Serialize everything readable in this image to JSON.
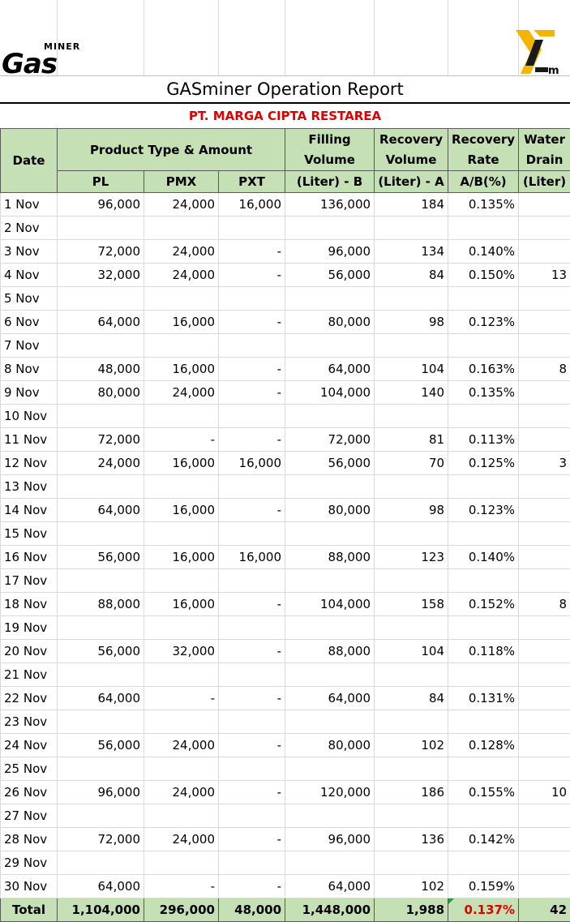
{
  "report": {
    "title": "GASminer Operation Report",
    "company": "PT. MARGA CIPTA RESTAREA",
    "logo_small": "MINER",
    "logo_big": "Gas",
    "logo_right_sub": "m"
  },
  "headers": {
    "date": "Date",
    "product_group": "Product Type & Amount",
    "pl": "PL",
    "pmx": "PMX",
    "pxt": "PXT",
    "filling_1": "Filling",
    "filling_2": "Volume",
    "filling_3": "(Liter) - B",
    "recovery_1": "Recovery",
    "recovery_2": "Volume",
    "recovery_3": "(Liter) - A",
    "rate_1": "Recovery",
    "rate_2": "Rate",
    "rate_3": "A/B(%)",
    "drain_1": "Water",
    "drain_2": "Drain",
    "drain_3": "(Liter)"
  },
  "rows": [
    [
      "1 Nov",
      "96,000",
      "24,000",
      "16,000",
      "136,000",
      "184",
      "0.135%",
      ""
    ],
    [
      "2 Nov",
      "",
      "",
      "",
      "",
      "",
      "",
      ""
    ],
    [
      "3 Nov",
      "72,000",
      "24,000",
      "-",
      "96,000",
      "134",
      "0.140%",
      ""
    ],
    [
      "4 Nov",
      "32,000",
      "24,000",
      "-",
      "56,000",
      "84",
      "0.150%",
      "13"
    ],
    [
      "5 Nov",
      "",
      "",
      "",
      "",
      "",
      "",
      ""
    ],
    [
      "6 Nov",
      "64,000",
      "16,000",
      "-",
      "80,000",
      "98",
      "0.123%",
      ""
    ],
    [
      "7 Nov",
      "",
      "",
      "",
      "",
      "",
      "",
      ""
    ],
    [
      "8 Nov",
      "48,000",
      "16,000",
      "-",
      "64,000",
      "104",
      "0.163%",
      "8"
    ],
    [
      "9 Nov",
      "80,000",
      "24,000",
      "-",
      "104,000",
      "140",
      "0.135%",
      ""
    ],
    [
      "10 Nov",
      "",
      "",
      "",
      "",
      "",
      "",
      ""
    ],
    [
      "11 Nov",
      "72,000",
      "-",
      "-",
      "72,000",
      "81",
      "0.113%",
      ""
    ],
    [
      "12 Nov",
      "24,000",
      "16,000",
      "16,000",
      "56,000",
      "70",
      "0.125%",
      "3"
    ],
    [
      "13 Nov",
      "",
      "",
      "",
      "",
      "",
      "",
      ""
    ],
    [
      "14 Nov",
      "64,000",
      "16,000",
      "-",
      "80,000",
      "98",
      "0.123%",
      ""
    ],
    [
      "15 Nov",
      "",
      "",
      "",
      "",
      "",
      "",
      ""
    ],
    [
      "16 Nov",
      "56,000",
      "16,000",
      "16,000",
      "88,000",
      "123",
      "0.140%",
      ""
    ],
    [
      "17 Nov",
      "",
      "",
      "",
      "",
      "",
      "",
      ""
    ],
    [
      "18 Nov",
      "88,000",
      "16,000",
      "-",
      "104,000",
      "158",
      "0.152%",
      "8"
    ],
    [
      "19 Nov",
      "",
      "",
      "",
      "",
      "",
      "",
      ""
    ],
    [
      "20 Nov",
      "56,000",
      "32,000",
      "-",
      "88,000",
      "104",
      "0.118%",
      ""
    ],
    [
      "21 Nov",
      "",
      "",
      "",
      "",
      "",
      "",
      ""
    ],
    [
      "22 Nov",
      "64,000",
      "-",
      "-",
      "64,000",
      "84",
      "0.131%",
      ""
    ],
    [
      "23 Nov",
      "",
      "",
      "",
      "",
      "",
      "",
      ""
    ],
    [
      "24 Nov",
      "56,000",
      "24,000",
      "-",
      "80,000",
      "102",
      "0.128%",
      ""
    ],
    [
      "25 Nov",
      "",
      "",
      "",
      "",
      "",
      "",
      ""
    ],
    [
      "26 Nov",
      "96,000",
      "24,000",
      "-",
      "120,000",
      "186",
      "0.155%",
      "10"
    ],
    [
      "27 Nov",
      "",
      "",
      "",
      "",
      "",
      "",
      ""
    ],
    [
      "28 Nov",
      "72,000",
      "24,000",
      "-",
      "96,000",
      "136",
      "0.142%",
      ""
    ],
    [
      "29 Nov",
      "",
      "",
      "",
      "",
      "",
      "",
      ""
    ],
    [
      "30 Nov",
      "64,000",
      "-",
      "-",
      "64,000",
      "102",
      "0.159%",
      ""
    ]
  ],
  "total": [
    "Total",
    "1,104,000",
    "296,000",
    "48,000",
    "1,448,000",
    "1,988",
    "0.137%",
    "42"
  ],
  "colors": {
    "header_bg": "#c5e0b4",
    "accent_red": "#e10000",
    "logo_gold": "#f2b500"
  }
}
